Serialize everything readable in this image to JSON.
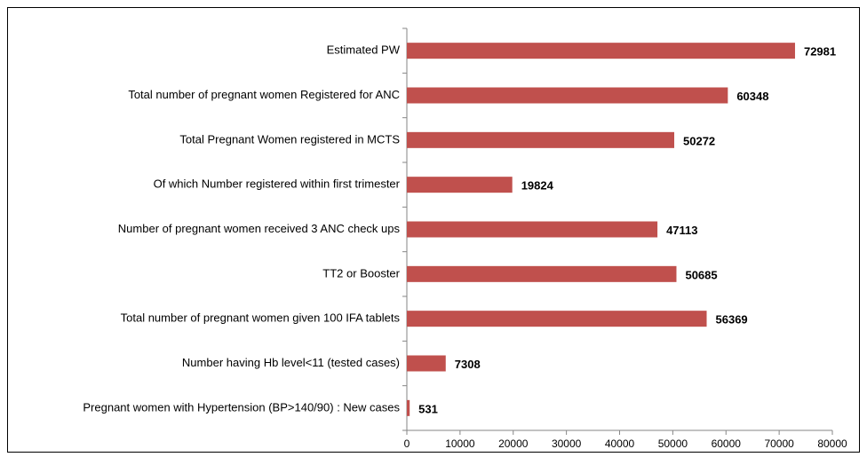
{
  "chart_data": {
    "type": "bar",
    "orientation": "horizontal",
    "categories": [
      "Estimated PW",
      "Total number of pregnant women Registered for ANC",
      "Total Pregnant Women registered in MCTS",
      "Of which Number registered within first trimester",
      "Number of pregnant women received 3 ANC check ups",
      "TT2 or Booster",
      "Total number of pregnant women given 100 IFA tablets",
      "Number having Hb level<11 (tested cases)",
      "Pregnant women with Hypertension (BP>140/90) : New cases"
    ],
    "values": [
      72981,
      60348,
      50272,
      19824,
      47113,
      50685,
      56369,
      7308,
      531
    ],
    "color": "#c0504d",
    "xlim": [
      0,
      80000
    ],
    "xticks": [
      0,
      10000,
      20000,
      30000,
      40000,
      50000,
      60000,
      70000,
      80000
    ],
    "grid": false
  }
}
